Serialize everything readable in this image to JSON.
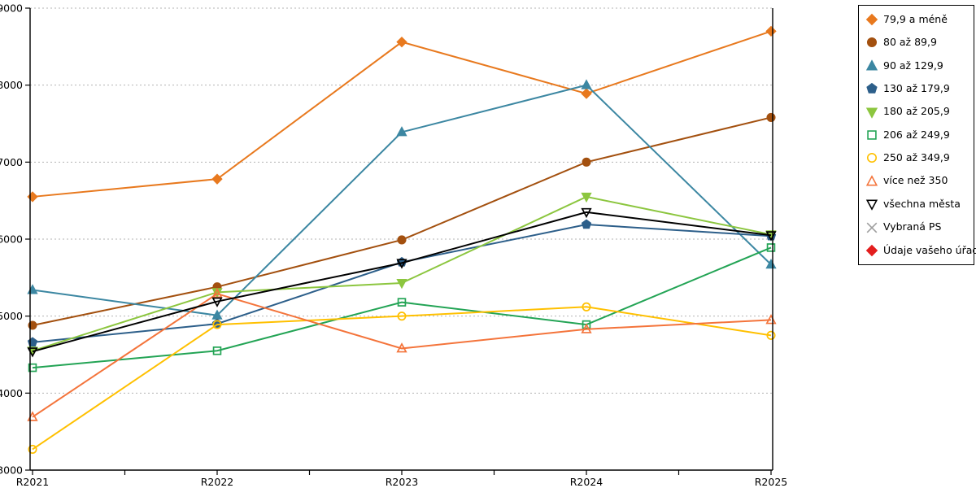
{
  "chart_data": {
    "type": "line",
    "title": "",
    "xlabel": "",
    "ylabel": "",
    "categories": [
      "R2021",
      "R2022",
      "R2023",
      "R2024",
      "R2025"
    ],
    "ylim": [
      3000,
      9000
    ],
    "yticks": [
      3000,
      4000,
      5000,
      6000,
      7000,
      8000,
      9000
    ],
    "grid": "horizontal-dotted",
    "legend_position": "right",
    "series": [
      {
        "name": "79,9 a méně",
        "color": "#E8791E",
        "marker": "diamond",
        "filled": true,
        "values": [
          6550,
          6780,
          8560,
          7890,
          8700
        ]
      },
      {
        "name": "80 až 89,9",
        "color": "#A3500F",
        "marker": "circle",
        "filled": true,
        "values": [
          4880,
          5380,
          5990,
          7000,
          7580
        ]
      },
      {
        "name": "90 až 129,9",
        "color": "#3C87A2",
        "marker": "triangle-up",
        "filled": true,
        "values": [
          5340,
          5010,
          7390,
          8000,
          5670
        ]
      },
      {
        "name": "130 až 179,9",
        "color": "#2D5F8A",
        "marker": "pentagon",
        "filled": true,
        "values": [
          4660,
          4900,
          5700,
          6190,
          6040
        ]
      },
      {
        "name": "180 až 205,9",
        "color": "#8CC63F",
        "marker": "triangle-down",
        "filled": true,
        "values": [
          4550,
          5310,
          5430,
          6550,
          6060
        ]
      },
      {
        "name": "206 až 249,9",
        "color": "#23A455",
        "marker": "square",
        "filled": false,
        "values": [
          4330,
          4550,
          5180,
          4890,
          5890
        ]
      },
      {
        "name": "250 až 349,9",
        "color": "#FFC000",
        "marker": "circle",
        "filled": false,
        "values": [
          3270,
          4890,
          5000,
          5120,
          4750
        ]
      },
      {
        "name": "více než 350",
        "color": "#F4743B",
        "marker": "triangle-up",
        "filled": false,
        "values": [
          3690,
          5290,
          4580,
          4830,
          4950
        ]
      },
      {
        "name": "všechna města",
        "color": "#000000",
        "marker": "triangle-down",
        "filled": false,
        "values": [
          4540,
          5190,
          5690,
          6350,
          6050
        ]
      },
      {
        "name": "Vybraná PS",
        "color": "#9E9E9E",
        "marker": "x",
        "filled": false,
        "values": null
      },
      {
        "name": "Údaje vašeho úřadu",
        "color": "#E31E1E",
        "marker": "diamond",
        "filled": true,
        "values": null
      }
    ]
  }
}
